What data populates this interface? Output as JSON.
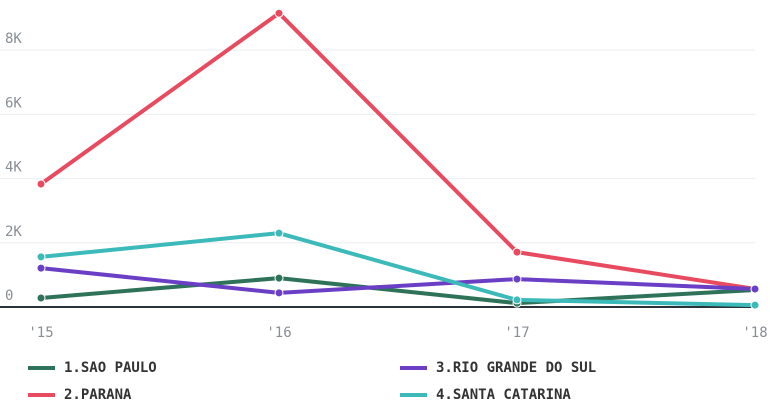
{
  "chart_data": {
    "type": "line",
    "categories": [
      "'15",
      "'16",
      "'17",
      "'18"
    ],
    "series": [
      {
        "name": "1.SAO PAULO",
        "color": "#2e7259",
        "values": [
          280,
          900,
          120,
          530
        ]
      },
      {
        "name": "2.PARANA",
        "color": "#e84a60",
        "values": [
          3830,
          9150,
          1710,
          560
        ]
      },
      {
        "name": "3.RIO GRANDE DO SUL",
        "color": "#6a3fc6",
        "values": [
          1210,
          440,
          870,
          560
        ]
      },
      {
        "name": "4.SANTA CATARINA",
        "color": "#3cb9b9",
        "values": [
          1560,
          2300,
          220,
          60
        ]
      }
    ],
    "ylim": [
      0,
      9250
    ],
    "yticks": [
      0,
      {
        "value": 2000,
        "label": "2K"
      },
      {
        "value": 4000,
        "label": "4K"
      },
      {
        "value": 6000,
        "label": "6K"
      },
      {
        "value": 8000,
        "label": "8K"
      }
    ],
    "grid": true
  }
}
